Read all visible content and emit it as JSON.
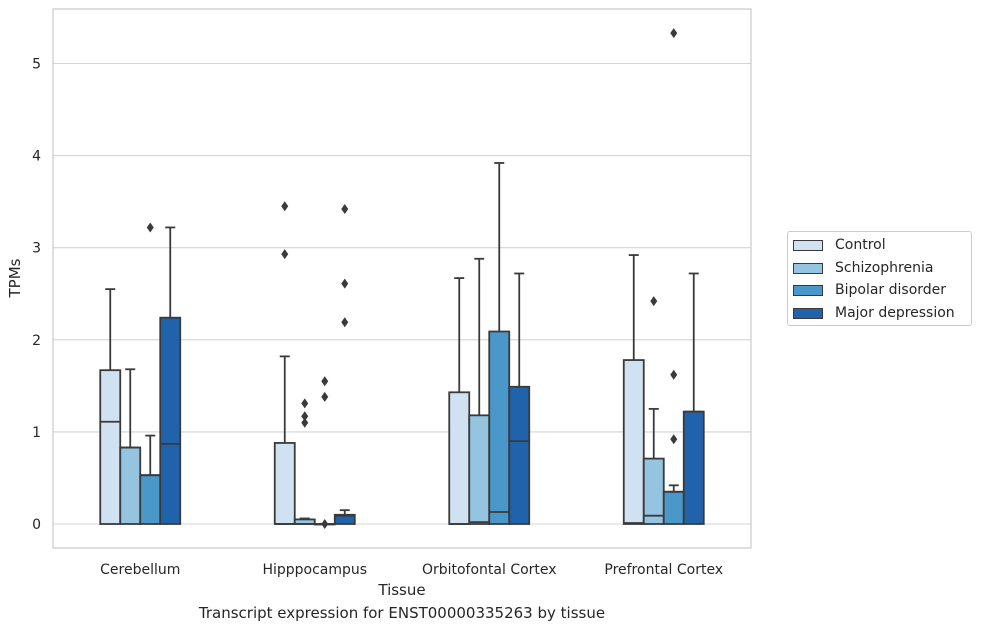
{
  "chart_data": {
    "type": "boxplot",
    "title": "",
    "xlabel": "Tissue",
    "ylabel": "TPMs",
    "caption": "Transcript expression for ENST00000335263 by tissue",
    "ylim": [
      -0.25,
      5.6
    ],
    "yticks": [
      "0",
      "1",
      "2",
      "3",
      "4",
      "5"
    ],
    "grid": "horizontal",
    "legend_position": "right",
    "categories": [
      "Cerebellum",
      "Hipppocampus",
      "Orbitofontal Cortex",
      "Prefrontal Cortex"
    ],
    "series": [
      {
        "name": "Control",
        "color": "#d0e1f2",
        "boxes": [
          {
            "whislo": 0.0,
            "q1": 0.0,
            "med": 1.11,
            "q3": 1.67,
            "whishi": 2.55,
            "fliers": []
          },
          {
            "whislo": 0.0,
            "q1": 0.0,
            "med": 0.0,
            "q3": 0.88,
            "whishi": 1.82,
            "fliers": [
              2.93,
              3.45
            ]
          },
          {
            "whislo": 0.0,
            "q1": 0.0,
            "med": 0.0,
            "q3": 1.43,
            "whishi": 2.67,
            "fliers": []
          },
          {
            "whislo": 0.0,
            "q1": 0.0,
            "med": 0.01,
            "q3": 1.78,
            "whishi": 2.92,
            "fliers": []
          }
        ]
      },
      {
        "name": "Schizophrenia",
        "color": "#94c4df",
        "boxes": [
          {
            "whislo": 0.0,
            "q1": 0.0,
            "med": 0.83,
            "q3": 0.83,
            "whishi": 1.68,
            "fliers": []
          },
          {
            "whislo": 0.0,
            "q1": 0.0,
            "med": 0.0,
            "q3": 0.05,
            "whishi": 0.06,
            "fliers": [
              1.1,
              1.17,
              1.31
            ]
          },
          {
            "whislo": 0.0,
            "q1": 0.0,
            "med": 0.02,
            "q3": 1.18,
            "whishi": 2.88,
            "fliers": []
          },
          {
            "whislo": 0.0,
            "q1": 0.0,
            "med": 0.09,
            "q3": 0.71,
            "whishi": 1.25,
            "fliers": [
              2.42
            ]
          }
        ]
      },
      {
        "name": "Bipolar disorder",
        "color": "#4a98c9",
        "boxes": [
          {
            "whislo": 0.0,
            "q1": 0.0,
            "med": 0.53,
            "q3": 0.53,
            "whishi": 0.96,
            "fliers": [
              3.22
            ]
          },
          {
            "whislo": 0.0,
            "q1": 0.0,
            "med": 0.0,
            "q3": 0.0,
            "whishi": 0.0,
            "fliers": [
              0.0,
              1.38,
              1.55
            ]
          },
          {
            "whislo": 0.0,
            "q1": 0.0,
            "med": 0.13,
            "q3": 2.09,
            "whishi": 3.92,
            "fliers": []
          },
          {
            "whislo": 0.0,
            "q1": 0.0,
            "med": 0.35,
            "q3": 0.35,
            "whishi": 0.42,
            "fliers": [
              0.92,
              1.62,
              5.33
            ]
          }
        ]
      },
      {
        "name": "Major depression",
        "color": "#2163aa",
        "boxes": [
          {
            "whislo": 0.0,
            "q1": 0.0,
            "med": 0.87,
            "q3": 2.24,
            "whishi": 3.22,
            "fliers": []
          },
          {
            "whislo": 0.0,
            "q1": 0.0,
            "med": 0.09,
            "q3": 0.1,
            "whishi": 0.15,
            "fliers": [
              2.19,
              2.61,
              3.42
            ]
          },
          {
            "whislo": 0.0,
            "q1": 0.0,
            "med": 0.9,
            "q3": 1.49,
            "whishi": 2.72,
            "fliers": []
          },
          {
            "whislo": 0.0,
            "q1": 0.0,
            "med": 1.22,
            "q3": 1.22,
            "whishi": 2.72,
            "fliers": []
          }
        ]
      }
    ]
  }
}
